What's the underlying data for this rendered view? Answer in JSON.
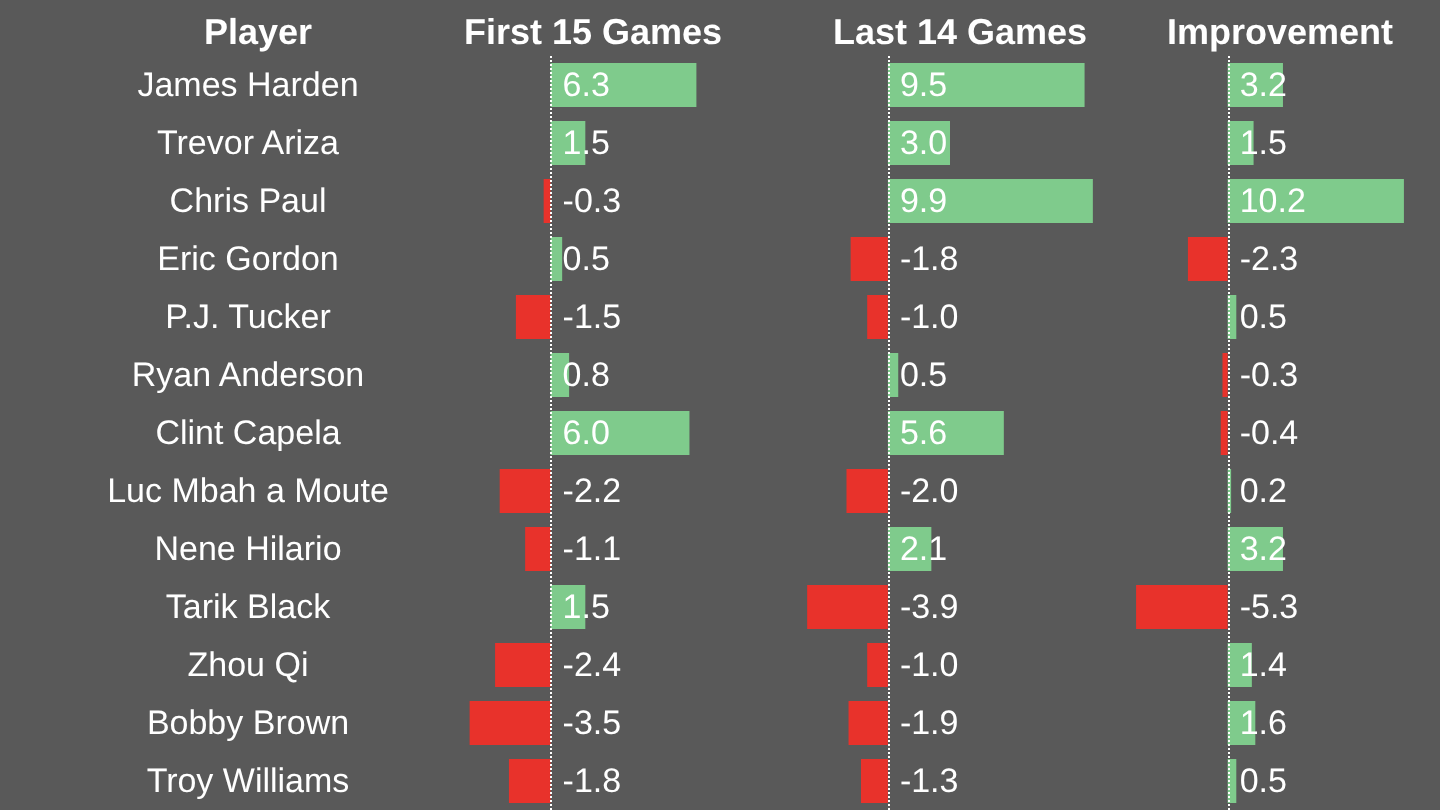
{
  "chart_data": [
    {
      "type": "bar",
      "orientation": "horizontal",
      "title": "First 15 Games",
      "ylabel": "Player",
      "tick_labels": "y",
      "value_labels": [
        "6.3",
        "1.5",
        "-0.3",
        "0.5",
        "-1.5",
        "0.8",
        "6.0",
        "-2.2",
        "-1.1",
        "1.5",
        "-2.4",
        "-3.5",
        "-1.8"
      ],
      "ref_lines": [
        {
          "axis": "x",
          "value": 0,
          "color": "#ffffff",
          "line_style": "dotted"
        }
      ],
      "categories": [
        "James Harden",
        "Trevor Ariza",
        "Chris Paul",
        "Eric Gordon",
        "P.J. Tucker",
        "Ryan Anderson",
        "Clint Capela",
        "Luc Mbah a Moute",
        "Nene Hilario",
        "Tarik Black",
        "Zhou Qi",
        "Bobby Brown",
        "Troy Williams"
      ],
      "values": [
        6.3,
        1.5,
        -0.3,
        0.5,
        -1.5,
        0.8,
        6.0,
        -2.2,
        -1.1,
        1.5,
        -2.4,
        -3.5,
        -1.8
      ],
      "colors": [
        "#7fcb8c",
        "#7fcb8c",
        "#e8322b",
        "#7fcb8c",
        "#e8322b",
        "#7fcb8c",
        "#7fcb8c",
        "#e8322b",
        "#e8322b",
        "#7fcb8c",
        "#e8322b",
        "#e8322b",
        "#e8322b"
      ]
    },
    {
      "type": "bar",
      "orientation": "horizontal",
      "title": "Last 14 Games",
      "tick_labels": false,
      "value_labels": [
        "9.5",
        "3.0",
        "9.9",
        "-1.8",
        "-1.0",
        "0.5",
        "5.6",
        "-2.0",
        "2.1",
        "-3.9",
        "-1.0",
        "-1.9",
        "-1.3"
      ],
      "ref_lines": [
        {
          "axis": "x",
          "value": 0,
          "color": "#ffffff",
          "line_style": "dotted"
        }
      ],
      "categories": [
        null,
        null,
        null,
        null,
        null,
        null,
        null,
        null,
        null,
        null,
        null,
        null,
        null
      ],
      "values": [
        9.5,
        3.0,
        9.9,
        -1.8,
        -1.0,
        0.5,
        5.6,
        -2.0,
        2.1,
        -3.9,
        -1.0,
        -1.9,
        -1.3
      ],
      "colors": [
        "#7fcb8c",
        "#7fcb8c",
        "#7fcb8c",
        "#e8322b",
        "#e8322b",
        "#7fcb8c",
        "#7fcb8c",
        "#e8322b",
        "#7fcb8c",
        "#e8322b",
        "#e8322b",
        "#e8322b",
        "#e8322b"
      ]
    },
    {
      "type": "bar",
      "orientation": "horizontal",
      "title": "Improvement",
      "tick_labels": false,
      "value_labels": [
        "3.2",
        "1.5",
        "10.2",
        "-2.3",
        "0.5",
        "-0.3",
        "-0.4",
        "0.2",
        "3.2",
        "-5.3",
        "1.4",
        "1.6",
        "0.5"
      ],
      "ref_lines": [
        {
          "axis": "x",
          "value": 0,
          "color": "#ffffff",
          "line_style": "dotted"
        }
      ],
      "categories": [
        null,
        null,
        null,
        null,
        null,
        null,
        null,
        null,
        null,
        null,
        null,
        null,
        null
      ],
      "values": [
        3.2,
        1.5,
        10.2,
        -2.3,
        0.5,
        -0.3,
        -0.4,
        0.2,
        3.2,
        -5.3,
        1.4,
        1.6,
        0.5
      ],
      "colors": [
        "#7fcb8c",
        "#7fcb8c",
        "#7fcb8c",
        "#e8322b",
        "#7fcb8c",
        "#e8322b",
        "#e8322b",
        "#7fcb8c",
        "#7fcb8c",
        "#e8322b",
        "#7fcb8c",
        "#7fcb8c",
        "#7fcb8c"
      ]
    }
  ]
}
